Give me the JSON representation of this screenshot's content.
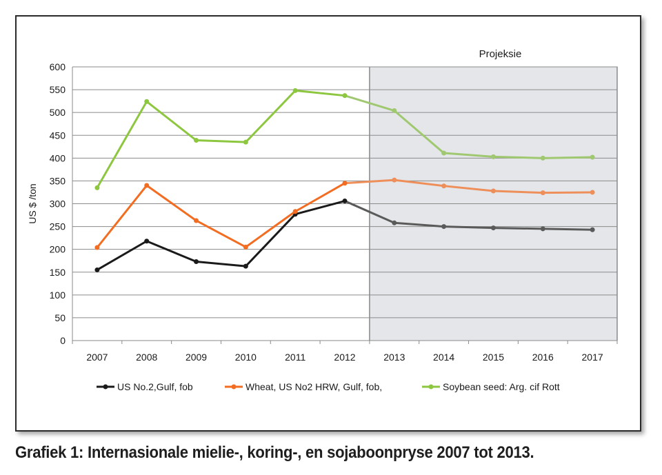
{
  "caption": "Grafiek 1: Internasionale mielie-, koring-, en sojaboonpryse 2007 tot 2013.",
  "chart_data": {
    "type": "line",
    "title": "",
    "xlabel": "",
    "ylabel": "US $ /ton",
    "ylim": [
      0,
      600
    ],
    "yticks": [
      0,
      50,
      100,
      150,
      200,
      250,
      300,
      350,
      400,
      450,
      500,
      550,
      600
    ],
    "categories": [
      "2007",
      "2008",
      "2009",
      "2010",
      "2011",
      "2012",
      "2013",
      "2014",
      "2015",
      "2016",
      "2017"
    ],
    "projection": {
      "label": "Projeksie",
      "start_after": "2012",
      "fill": "#e4e6ea"
    },
    "grid": true,
    "legend_position": "bottom",
    "series": [
      {
        "name": "US No.2,Gulf, fob",
        "color": "#1a1a1a",
        "projection_color": "#5a5a5a",
        "values": [
          155,
          218,
          173,
          163,
          277,
          306,
          258,
          250,
          247,
          245,
          243
        ]
      },
      {
        "name": "Wheat, US No2 HRW, Gulf, fob,",
        "color": "#f26d21",
        "projection_color": "#ee8f5a",
        "values": [
          204,
          340,
          263,
          205,
          283,
          345,
          352,
          339,
          328,
          324,
          325
        ]
      },
      {
        "name": "Soybean seed: Arg. cif Rott",
        "color": "#8dc63f",
        "projection_color": "#a0c870",
        "values": [
          335,
          524,
          439,
          435,
          548,
          537,
          504,
          411,
          403,
          400,
          402
        ]
      }
    ]
  }
}
